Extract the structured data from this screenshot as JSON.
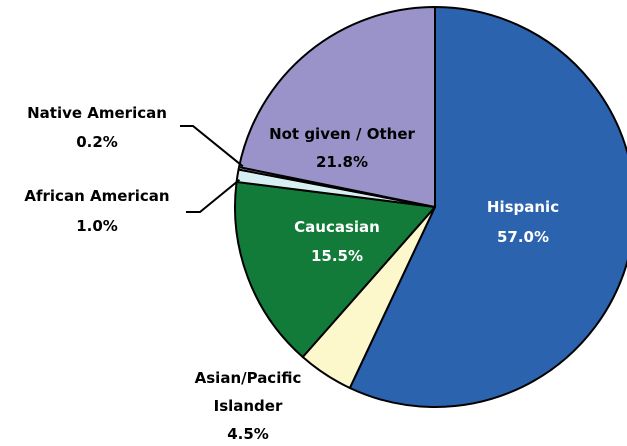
{
  "chart_data": {
    "type": "pie",
    "title": "",
    "start_angle_deg": 0,
    "direction": "clockwise",
    "legend": "none",
    "slices": [
      {
        "name": "Hispanic",
        "value": 57.0,
        "value_label": "57.0%",
        "color": "#2b63ae",
        "text_color": "#ffffff"
      },
      {
        "name": "Asian/Pacific Islander",
        "name_lines": [
          "Asian/Pacific",
          "Islander"
        ],
        "value": 4.5,
        "value_label": "4.5%",
        "color": "#fdf8cc",
        "text_color": "#000000"
      },
      {
        "name": "Caucasian",
        "value": 15.5,
        "value_label": "15.5%",
        "color": "#137b3a",
        "text_color": "#ffffff"
      },
      {
        "name": "African American",
        "value": 1.0,
        "value_label": "1.0%",
        "color": "#d7eef2",
        "text_color": "#000000"
      },
      {
        "name": "Native American",
        "value": 0.2,
        "value_label": "0.2%",
        "color": "#f0f0f0",
        "text_color": "#000000"
      },
      {
        "name": "Not given / Other",
        "value": 21.8,
        "value_label": "21.8%",
        "color": "#9a93c9",
        "text_color": "#000000"
      }
    ]
  }
}
